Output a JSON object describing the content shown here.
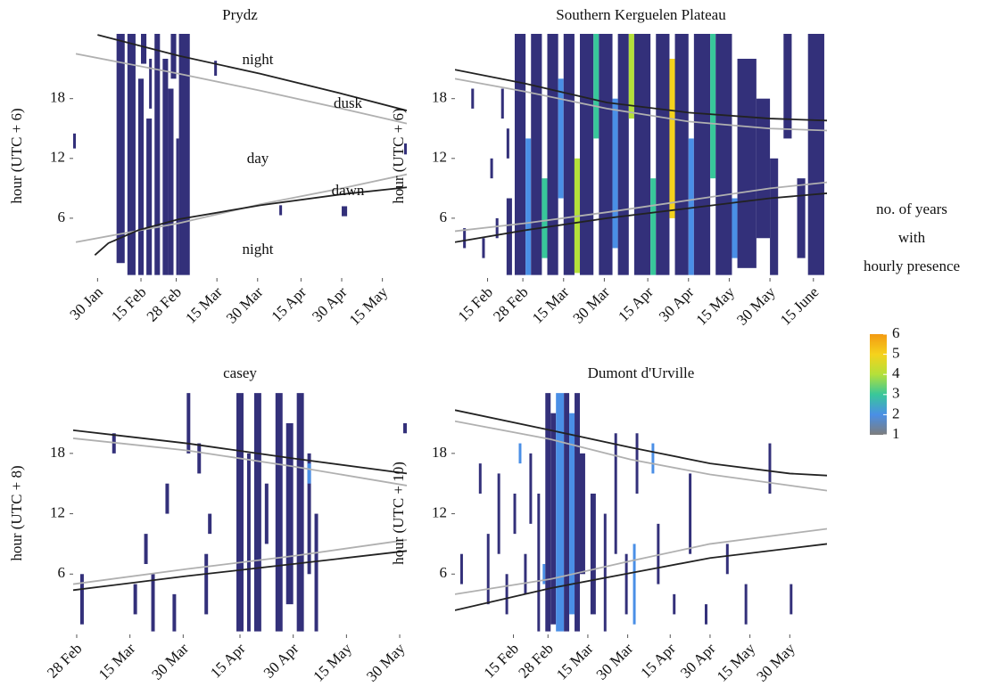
{
  "chart_data": [
    {
      "type": "heatmap",
      "title": "Prydz",
      "ylabel": "hour (UTC + 6)",
      "xlim": [
        21,
        144
      ],
      "ylim": [
        0,
        24.5
      ],
      "yticks": [
        6,
        12,
        18
      ],
      "xticks": [
        {
          "value": 30,
          "label": "30 Jan"
        },
        {
          "value": 46,
          "label": "15 Feb"
        },
        {
          "value": 59,
          "label": "28 Feb"
        },
        {
          "value": 74,
          "label": "15 Mar"
        },
        {
          "value": 89,
          "label": "30 Mar"
        },
        {
          "value": 105,
          "label": "15 Apr"
        },
        {
          "value": 120,
          "label": "30 Apr"
        },
        {
          "value": 135,
          "label": "15 May"
        }
      ],
      "annotations": [
        "night",
        "dusk",
        "day",
        "dawn",
        "night"
      ],
      "cells": [
        [
          21,
          22,
          13,
          14.5,
          1
        ],
        [
          37,
          40,
          1.5,
          24.5,
          1
        ],
        [
          41,
          44,
          0.3,
          24.5,
          1
        ],
        [
          45,
          47,
          0.3,
          20,
          1
        ],
        [
          46,
          48,
          21.5,
          24.5,
          1
        ],
        [
          48,
          50,
          0.3,
          16,
          1
        ],
        [
          49,
          50,
          17,
          22,
          1
        ],
        [
          51,
          53,
          0.3,
          24.5,
          1
        ],
        [
          54,
          56,
          0.3,
          22,
          1
        ],
        [
          56,
          58,
          0.3,
          19,
          1
        ],
        [
          57,
          59,
          20,
          24.5,
          1
        ],
        [
          59,
          60,
          0.3,
          14,
          1
        ],
        [
          60,
          64,
          0.3,
          24.5,
          1
        ],
        [
          73,
          74,
          20.3,
          21.8,
          1
        ],
        [
          97,
          98,
          6.3,
          7.3,
          1
        ],
        [
          120,
          122,
          6.2,
          7.2,
          1
        ],
        [
          143,
          144,
          12.4,
          13.5,
          1
        ]
      ],
      "lines": [
        {
          "color": "#222222",
          "x": [
            30,
            60,
            90,
            120,
            144
          ],
          "y": [
            24.4,
            22.3,
            20.5,
            18.5,
            16.8
          ]
        },
        {
          "color": "#b0b0b0",
          "x": [
            22,
            60,
            90,
            120,
            144
          ],
          "y": [
            22.5,
            20.5,
            18.8,
            17,
            15.5
          ]
        },
        {
          "color": "#b0b0b0",
          "x": [
            22,
            60,
            90,
            120,
            144
          ],
          "y": [
            3.6,
            5.5,
            7.4,
            9,
            10.4
          ]
        },
        {
          "color": "#222222",
          "x": [
            29,
            34,
            45,
            60,
            90,
            120,
            144
          ],
          "y": [
            2.3,
            3.5,
            4.8,
            5.9,
            7.3,
            8.4,
            9.1
          ]
        }
      ]
    },
    {
      "type": "heatmap",
      "title": "Southern Kerguelen Plateau",
      "ylabel": "hour (UTC + 6)",
      "xlim": [
        34,
        171
      ],
      "ylim": [
        0,
        24.5
      ],
      "yticks": [
        6,
        12,
        18
      ],
      "xticks": [
        {
          "value": 46,
          "label": "15 Feb"
        },
        {
          "value": 59,
          "label": "28 Feb"
        },
        {
          "value": 74,
          "label": "15 Mar"
        },
        {
          "value": 89,
          "label": "30 Mar"
        },
        {
          "value": 105,
          "label": "15 Apr"
        },
        {
          "value": 120,
          "label": "30 Apr"
        },
        {
          "value": 135,
          "label": "15 May"
        },
        {
          "value": 150,
          "label": "30 May"
        },
        {
          "value": 166,
          "label": "15 June"
        }
      ],
      "cells": [
        [
          37,
          38,
          3,
          5,
          1
        ],
        [
          40,
          41,
          17,
          19,
          1
        ],
        [
          44,
          45,
          2,
          4,
          1
        ],
        [
          47,
          48,
          10,
          12,
          1
        ],
        [
          49,
          50,
          4,
          6,
          1
        ],
        [
          51,
          52,
          16,
          19,
          1
        ],
        [
          53,
          55,
          0.3,
          8,
          1
        ],
        [
          53,
          54,
          12,
          15,
          1
        ],
        [
          56,
          60,
          0.3,
          24.5,
          1
        ],
        [
          60,
          62,
          0.3,
          14,
          2
        ],
        [
          62,
          66,
          0.3,
          24.5,
          1
        ],
        [
          66,
          68,
          2,
          10,
          3
        ],
        [
          68,
          72,
          0.3,
          24.5,
          1
        ],
        [
          72,
          74,
          8,
          20,
          2
        ],
        [
          74,
          78,
          0.3,
          24.5,
          1
        ],
        [
          78,
          80,
          0.5,
          12,
          4
        ],
        [
          80,
          85,
          0.3,
          24.5,
          1
        ],
        [
          85,
          87,
          14,
          24.5,
          3
        ],
        [
          87,
          92,
          0.3,
          24.5,
          1
        ],
        [
          92,
          94,
          3,
          18,
          2
        ],
        [
          94,
          98,
          0.3,
          24.5,
          1
        ],
        [
          98,
          100,
          16,
          24.5,
          4
        ],
        [
          100,
          106,
          0.3,
          24.5,
          1
        ],
        [
          106,
          108,
          0.3,
          10,
          3
        ],
        [
          108,
          113,
          0.3,
          24.5,
          1
        ],
        [
          113,
          115,
          6,
          22,
          5
        ],
        [
          115,
          120,
          0.3,
          24.5,
          1
        ],
        [
          120,
          122,
          0.3,
          14,
          2
        ],
        [
          122,
          128,
          0.3,
          24.5,
          1
        ],
        [
          128,
          130,
          10,
          24.5,
          3
        ],
        [
          130,
          136,
          0.3,
          24.5,
          1
        ],
        [
          136,
          138,
          2,
          8,
          2
        ],
        [
          138,
          145,
          1,
          22,
          1
        ],
        [
          145,
          150,
          4,
          18,
          1
        ],
        [
          150,
          153,
          0.3,
          12,
          1
        ],
        [
          155,
          158,
          14,
          24.5,
          1
        ],
        [
          160,
          163,
          2,
          10,
          1
        ],
        [
          164,
          170,
          0.3,
          24.5,
          1
        ]
      ],
      "lines": [
        {
          "color": "#222222",
          "x": [
            34,
            60,
            90,
            120,
            150,
            171
          ],
          "y": [
            20.9,
            19.5,
            17.6,
            16.6,
            16,
            15.8
          ]
        },
        {
          "color": "#b0b0b0",
          "x": [
            34,
            60,
            90,
            120,
            150,
            171
          ],
          "y": [
            20,
            18.7,
            17,
            15.7,
            15,
            14.8
          ]
        },
        {
          "color": "#b0b0b0",
          "x": [
            34,
            60,
            90,
            120,
            150,
            171
          ],
          "y": [
            4.7,
            5.5,
            6.6,
            7.8,
            9,
            9.6
          ]
        },
        {
          "color": "#222222",
          "x": [
            34,
            60,
            90,
            120,
            150,
            171
          ],
          "y": [
            3.6,
            4.8,
            6,
            7,
            8,
            8.5
          ]
        }
      ]
    },
    {
      "type": "heatmap",
      "title": "casey",
      "ylabel": "hour (UTC + 8)",
      "xlim": [
        58,
        152
      ],
      "ylim": [
        0,
        24.1
      ],
      "yticks": [
        6,
        12,
        18
      ],
      "xticks": [
        {
          "value": 59,
          "label": "28 Feb"
        },
        {
          "value": 74,
          "label": "15 Mar"
        },
        {
          "value": 89,
          "label": "30 Mar"
        },
        {
          "value": 105,
          "label": "15 Apr"
        },
        {
          "value": 120,
          "label": "30 Apr"
        },
        {
          "value": 135,
          "label": "15 May"
        },
        {
          "value": 150,
          "label": "30 May"
        }
      ],
      "cells": [
        [
          60,
          61,
          1,
          6,
          1
        ],
        [
          69,
          70,
          18,
          20,
          1
        ],
        [
          75,
          76,
          2,
          5,
          1
        ],
        [
          78,
          79,
          7,
          10,
          1
        ],
        [
          80,
          81,
          0.3,
          6,
          1
        ],
        [
          84,
          85,
          12,
          15,
          1
        ],
        [
          86,
          87,
          0.3,
          4,
          1
        ],
        [
          90,
          91,
          18,
          24,
          1
        ],
        [
          93,
          94,
          16,
          19,
          1
        ],
        [
          95,
          96,
          2,
          8,
          1
        ],
        [
          96,
          97,
          10,
          12,
          1
        ],
        [
          104,
          106,
          0.3,
          24,
          1
        ],
        [
          107,
          108,
          0.3,
          18,
          1
        ],
        [
          109,
          111,
          0.3,
          24,
          1
        ],
        [
          112,
          113,
          9,
          15,
          1
        ],
        [
          115,
          117,
          0.3,
          24,
          1
        ],
        [
          118,
          120,
          3,
          21,
          1
        ],
        [
          121,
          123,
          0.3,
          24,
          1
        ],
        [
          124,
          125,
          6,
          18,
          1
        ],
        [
          124,
          125,
          15,
          17,
          2
        ],
        [
          126,
          127,
          0.3,
          12,
          1
        ],
        [
          151,
          152,
          20,
          21,
          1
        ]
      ],
      "lines": [
        {
          "color": "#222222",
          "x": [
            58,
            90,
            120,
            152
          ],
          "y": [
            20.3,
            19,
            17.5,
            16
          ]
        },
        {
          "color": "#b0b0b0",
          "x": [
            58,
            90,
            120,
            152
          ],
          "y": [
            19.5,
            18.3,
            16.7,
            14.8
          ]
        },
        {
          "color": "#b0b0b0",
          "x": [
            58,
            90,
            120,
            152
          ],
          "y": [
            5,
            6.5,
            7.8,
            9.4
          ]
        },
        {
          "color": "#222222",
          "x": [
            58,
            90,
            120,
            152
          ],
          "y": [
            4.4,
            5.8,
            7,
            8.3
          ]
        }
      ]
    },
    {
      "type": "heatmap",
      "title": "Dumont d'Urville",
      "ylabel": "hour (UTC + 10)",
      "xlim": [
        24,
        164
      ],
      "ylim": [
        0,
        24.1
      ],
      "yticks": [
        6,
        12,
        18
      ],
      "xticks": [
        {
          "value": 46,
          "label": "15 Feb"
        },
        {
          "value": 59,
          "label": "28 Feb"
        },
        {
          "value": 74,
          "label": "15 Mar"
        },
        {
          "value": 89,
          "label": "30 Mar"
        },
        {
          "value": 105,
          "label": "15 Apr"
        },
        {
          "value": 120,
          "label": "30 Apr"
        },
        {
          "value": 135,
          "label": "15 May"
        },
        {
          "value": 150,
          "label": "30 May"
        }
      ],
      "cells": [
        [
          26,
          27,
          5,
          8,
          1
        ],
        [
          33,
          34,
          14,
          17,
          1
        ],
        [
          36,
          37,
          3,
          10,
          1
        ],
        [
          40,
          41,
          8,
          16,
          1
        ],
        [
          43,
          44,
          2,
          6,
          1
        ],
        [
          46,
          47,
          10,
          14,
          1
        ],
        [
          48,
          49,
          17,
          19,
          2
        ],
        [
          50,
          51,
          4,
          8,
          1
        ],
        [
          52,
          53,
          11,
          18,
          1
        ],
        [
          55,
          56,
          0.3,
          14,
          1
        ],
        [
          57,
          58,
          5,
          7,
          2
        ],
        [
          58,
          60,
          0.3,
          24,
          1
        ],
        [
          60,
          62,
          1,
          22,
          1
        ],
        [
          62,
          65,
          0.3,
          24,
          2
        ],
        [
          65,
          67,
          0.3,
          24,
          1
        ],
        [
          67,
          69,
          2,
          22,
          2
        ],
        [
          69,
          71,
          0.3,
          24,
          1
        ],
        [
          71,
          73,
          6,
          18,
          1
        ],
        [
          75,
          77,
          2,
          14,
          1
        ],
        [
          80,
          81,
          0.3,
          12,
          1
        ],
        [
          84,
          85,
          8,
          20,
          1
        ],
        [
          88,
          89,
          2,
          8,
          1
        ],
        [
          91,
          92,
          1,
          9,
          2
        ],
        [
          92,
          93,
          14,
          20,
          1
        ],
        [
          98,
          99,
          16,
          19,
          2
        ],
        [
          100,
          101,
          5,
          11,
          1
        ],
        [
          106,
          107,
          2,
          4,
          1
        ],
        [
          112,
          113,
          8,
          16,
          1
        ],
        [
          118,
          119,
          1,
          3,
          1
        ],
        [
          126,
          127,
          6,
          9,
          1
        ],
        [
          133,
          134,
          1,
          5,
          1
        ],
        [
          142,
          143,
          14,
          19,
          1
        ],
        [
          150,
          151,
          2,
          5,
          1
        ]
      ],
      "lines": [
        {
          "color": "#222222",
          "x": [
            24,
            60,
            90,
            120,
            150,
            164
          ],
          "y": [
            22.3,
            20.3,
            18.6,
            17,
            16,
            15.8
          ]
        },
        {
          "color": "#b0b0b0",
          "x": [
            24,
            60,
            90,
            120,
            164
          ],
          "y": [
            21.2,
            19.4,
            17.4,
            15.9,
            14.3
          ]
        },
        {
          "color": "#b0b0b0",
          "x": [
            24,
            60,
            90,
            120,
            164
          ],
          "y": [
            4,
            5.5,
            7.3,
            9,
            10.5
          ]
        },
        {
          "color": "#222222",
          "x": [
            24,
            60,
            90,
            120,
            164
          ],
          "y": [
            2.4,
            4.6,
            6.1,
            7.6,
            9
          ]
        }
      ]
    }
  ],
  "level_colors": [
    "#33307a",
    "#4a8fe6",
    "#38c79a",
    "#b4e03a",
    "#f5d21c",
    "#f39a12"
  ],
  "colorbar": {
    "title": [
      "no. of years",
      "with",
      "hourly presence"
    ],
    "ticks": [
      1,
      2,
      3,
      4,
      5,
      6
    ],
    "colors": [
      "#7d7d7d",
      "#4a8fe6",
      "#38c79a",
      "#b4e03a",
      "#f5d21c",
      "#f39a12"
    ]
  }
}
